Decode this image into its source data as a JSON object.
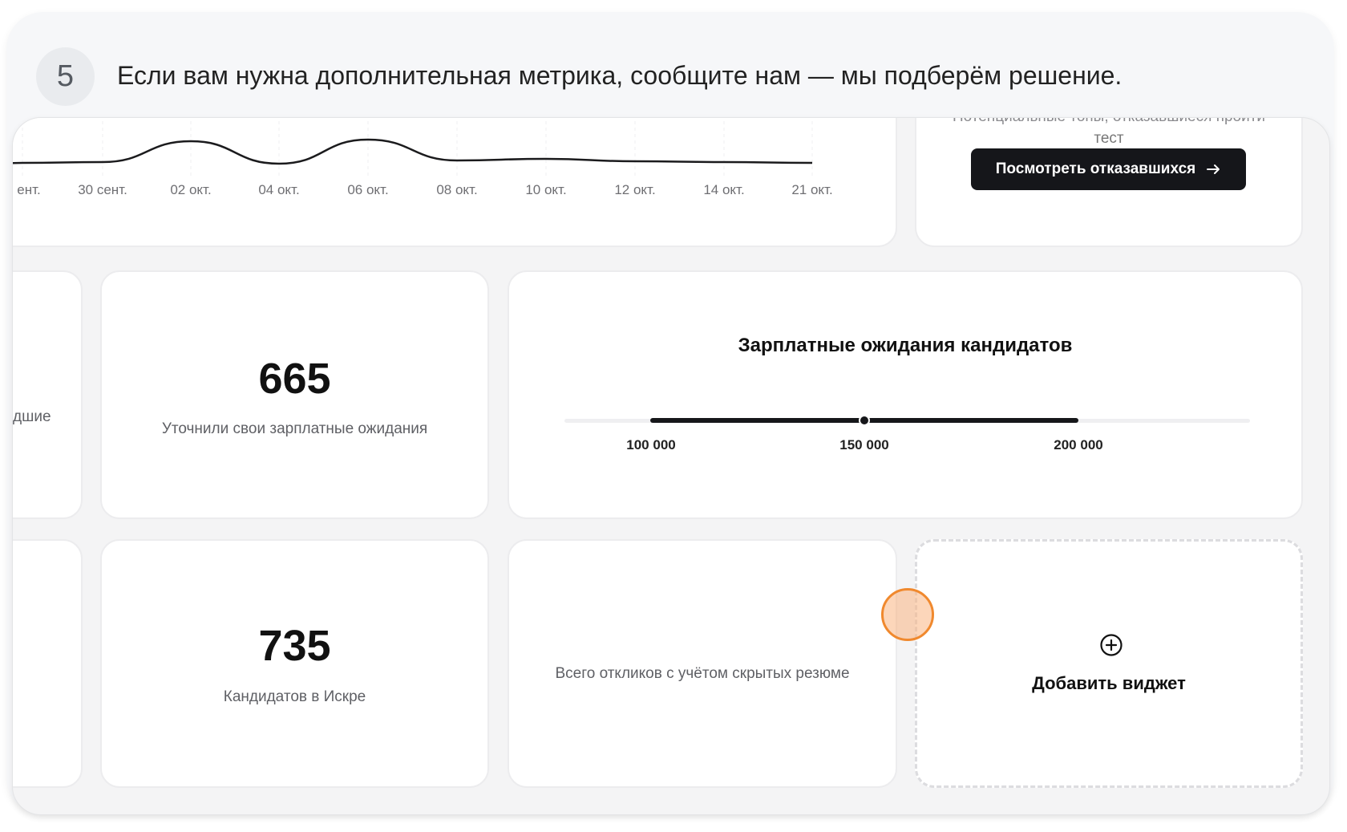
{
  "step": {
    "number": "5",
    "text": "Если вам нужна дополнительная метрика, сообщите нам — мы подберём решение."
  },
  "timeline_chart": {
    "chart_data": {
      "type": "line",
      "categories": [
        "ент.",
        "30 сент.",
        "02 окт.",
        "04 окт.",
        "06 окт.",
        "08 окт.",
        "10 окт.",
        "12 окт.",
        "14 окт.",
        "21 окт."
      ],
      "values": [
        13,
        14,
        40,
        12,
        42,
        16,
        18,
        15,
        14,
        13
      ],
      "title": "",
      "xlabel": "",
      "ylabel": "",
      "grid": true
    }
  },
  "refused_card": {
    "caption_line1": "Потенциальные топы, отказавшиеся пройти",
    "caption_line2": "тест",
    "button_label": "Посмотреть отказавшихся",
    "button_icon": "arrow-right-icon"
  },
  "partial_card": {
    "text": "дшие"
  },
  "salary_clarified": {
    "value": "665",
    "label": "Уточнили свои зарплатные ожидания"
  },
  "salary_expectations": {
    "title": "Зарплатные ожидания кандидатов",
    "range_min": 100000,
    "median": 150000,
    "range_max": 200000,
    "labels": [
      "100 000",
      "150 000",
      "200 000"
    ]
  },
  "candidates": {
    "value": "735",
    "label": "Кандидатов в Искре"
  },
  "total_responses": {
    "label": "Всего откликов с учётом скрытых резюме"
  },
  "add_widget": {
    "label": "Добавить виджет",
    "icon": "plus-circle-icon"
  }
}
